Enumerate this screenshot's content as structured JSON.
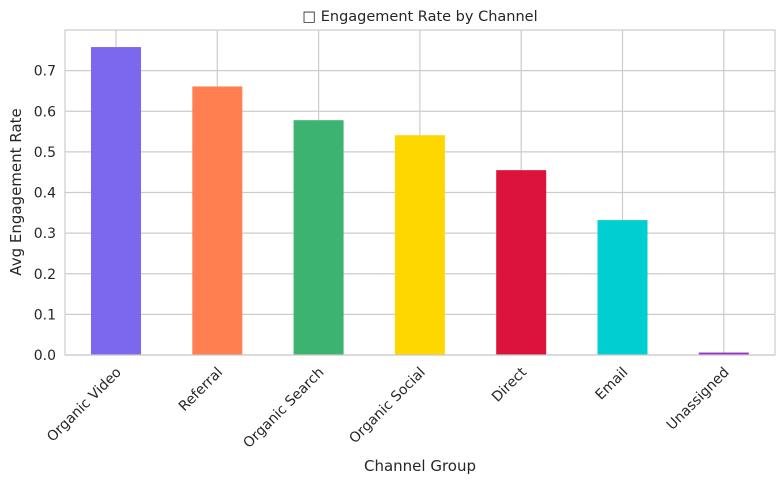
{
  "chart_data": {
    "type": "bar",
    "title": "□ Engagement Rate by Channel",
    "xlabel": "Channel Group",
    "ylabel": "Avg Engagement Rate",
    "categories": [
      "Organic Video",
      "Referral",
      "Organic Search",
      "Organic Social",
      "Direct",
      "Email",
      "Unassigned"
    ],
    "values": [
      0.758,
      0.661,
      0.578,
      0.541,
      0.455,
      0.332,
      0.006
    ],
    "colors": [
      "#7B68EE",
      "#FF7F50",
      "#3CB371",
      "#FFD700",
      "#DC143C",
      "#00CED1",
      "#9932CC"
    ],
    "ylim": [
      0,
      0.8
    ],
    "yticks": [
      "0.0",
      "0.1",
      "0.2",
      "0.3",
      "0.4",
      "0.5",
      "0.6",
      "0.7"
    ],
    "grid": true,
    "legend": "none"
  }
}
